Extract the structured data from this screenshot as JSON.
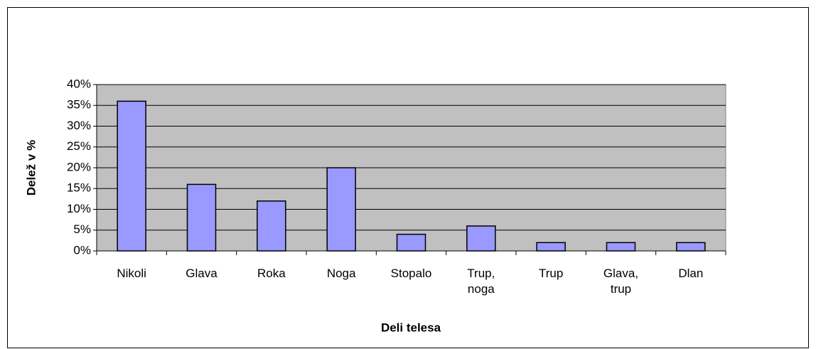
{
  "chart_data": {
    "type": "bar",
    "categories": [
      "Nikoli",
      "Glava",
      "Roka",
      "Noga",
      "Stopalo",
      "Trup, noga",
      "Trup",
      "Glava, trup",
      "Dlan"
    ],
    "values": [
      36,
      16,
      12,
      20,
      4,
      6,
      2,
      2,
      2
    ],
    "color": "#9999ff",
    "x_label": "Deli telesa",
    "y_label": "Delež v %",
    "ylim": [
      0,
      40
    ],
    "yticks": [
      {
        "value": 0,
        "label": "0%"
      },
      {
        "value": 5,
        "label": "5%"
      },
      {
        "value": 10,
        "label": "10%"
      },
      {
        "value": 15,
        "label": "15%"
      },
      {
        "value": 20,
        "label": "20%"
      },
      {
        "value": 25,
        "label": "25%"
      },
      {
        "value": 30,
        "label": "30%"
      },
      {
        "value": 35,
        "label": "35%"
      },
      {
        "value": 40,
        "label": "40%"
      }
    ],
    "grid": true
  }
}
